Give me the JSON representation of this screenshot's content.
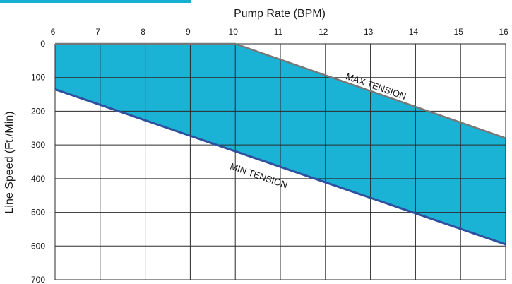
{
  "chart_data": {
    "type": "area",
    "title": "",
    "xlabel": "Pump Rate (BPM)",
    "ylabel": "Line Speed (Ft./Min)",
    "x_ticks": [
      6,
      7,
      8,
      9,
      10,
      11,
      12,
      13,
      14,
      15,
      16
    ],
    "y_ticks": [
      0,
      100,
      200,
      300,
      400,
      500,
      600,
      700
    ],
    "xlim": [
      6,
      16
    ],
    "ylim": [
      0,
      700
    ],
    "y_inverted": true,
    "x_axis_position": "top",
    "grid": true,
    "series": [
      {
        "name": "MAX TENSION",
        "x": [
          6,
          10,
          16
        ],
        "y": [
          0,
          0,
          280
        ]
      },
      {
        "name": "MIN TENSION",
        "x": [
          6,
          16
        ],
        "y": [
          135,
          595
        ]
      }
    ],
    "annotations": [
      {
        "text": "MAX TENSION",
        "x": 13.1,
        "y": 135
      },
      {
        "text": "MIN TENSION",
        "x": 10.5,
        "y": 400
      }
    ],
    "colors": {
      "band": "#1ab2d5",
      "max_line": "#777777",
      "min_line": "#2f4f9f",
      "grid": "#2a2a2a",
      "header_accent": "#17b0d3"
    }
  }
}
